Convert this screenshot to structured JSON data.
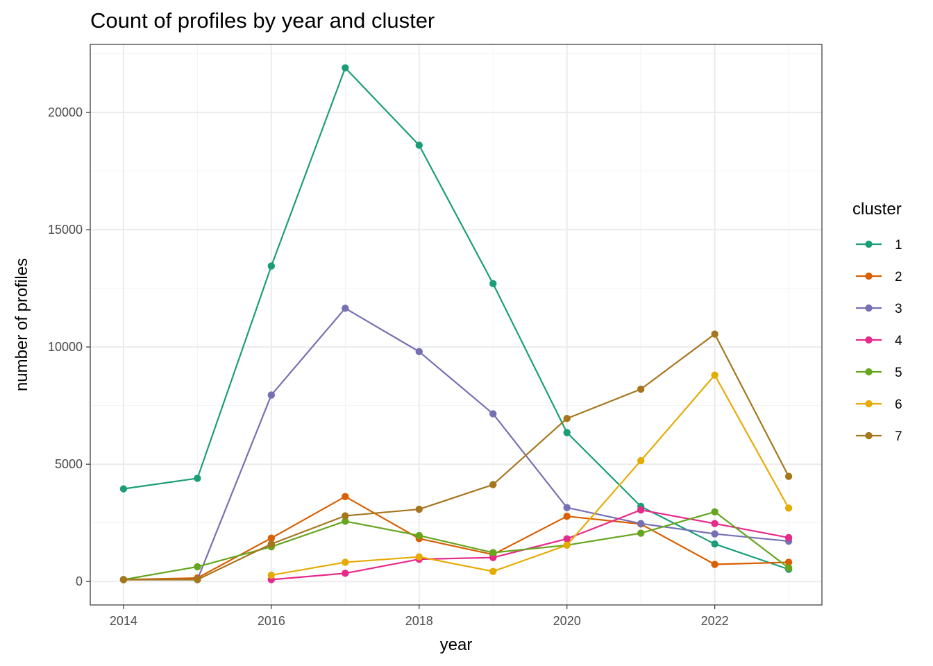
{
  "chart_data": {
    "type": "line",
    "title": "Count of profiles by year and cluster",
    "xlabel": "year",
    "ylabel": "number of profiles",
    "xlim": [
      2013.55,
      2023.45
    ],
    "ylim": [
      -1000,
      22900
    ],
    "x_ticks": [
      2014,
      2016,
      2018,
      2020,
      2022
    ],
    "x_tick_labels": [
      "2014",
      "2016",
      "2018",
      "2020",
      "2022"
    ],
    "y_ticks": [
      0,
      5000,
      10000,
      15000,
      20000
    ],
    "y_tick_labels": [
      "0",
      "5000",
      "10000",
      "15000",
      "20000"
    ],
    "grid": true,
    "legend": {
      "title": "cluster",
      "position": "right"
    },
    "series": [
      {
        "name": "1",
        "color": "#1B9E77",
        "x": [
          2014,
          2015,
          2016,
          2017,
          2018,
          2019,
          2020,
          2021,
          2022,
          2023
        ],
        "values": [
          3950,
          4400,
          13450,
          21900,
          18600,
          12700,
          6350,
          3200,
          1600,
          520
        ]
      },
      {
        "name": "2",
        "color": "#D95F02",
        "x": [
          2014,
          2015,
          2016,
          2017,
          2018,
          2019,
          2020,
          2021,
          2022,
          2023
        ],
        "values": [
          80,
          150,
          1850,
          3620,
          1830,
          1150,
          2780,
          2450,
          730,
          820
        ]
      },
      {
        "name": "3",
        "color": "#7570B3",
        "x": [
          2014,
          2015,
          2016,
          2017,
          2018,
          2019,
          2020,
          2021,
          2022,
          2023
        ],
        "values": [
          80,
          80,
          7950,
          11650,
          9800,
          7150,
          3150,
          2470,
          2030,
          1720
        ]
      },
      {
        "name": "4",
        "color": "#E7298A",
        "x": [
          2016,
          2017,
          2018,
          2019,
          2020,
          2021,
          2022,
          2023
        ],
        "values": [
          80,
          350,
          950,
          1020,
          1820,
          3050,
          2470,
          1870
        ]
      },
      {
        "name": "5",
        "color": "#66A61E",
        "x": [
          2014,
          2015,
          2016,
          2017,
          2018,
          2019,
          2020,
          2021,
          2022,
          2023
        ],
        "values": [
          80,
          630,
          1480,
          2570,
          1960,
          1230,
          1550,
          2060,
          2970,
          580
        ]
      },
      {
        "name": "6",
        "color": "#E6AB02",
        "x": [
          2016,
          2017,
          2018,
          2019,
          2020,
          2021,
          2022,
          2023
        ],
        "values": [
          270,
          820,
          1050,
          430,
          1550,
          5150,
          8800,
          3130
        ]
      },
      {
        "name": "7",
        "color": "#A6761D",
        "x": [
          2014,
          2015,
          2016,
          2017,
          2018,
          2019,
          2020,
          2021,
          2022,
          2023
        ],
        "values": [
          80,
          80,
          1600,
          2800,
          3080,
          4130,
          6950,
          8200,
          10550,
          4480
        ]
      }
    ]
  }
}
